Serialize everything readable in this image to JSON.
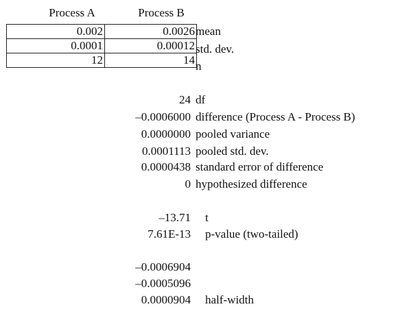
{
  "headers": {
    "process_a": "Process A",
    "process_b": "Process B"
  },
  "input_rows": [
    {
      "a": "0.002",
      "b": "0.0026",
      "label": "mean"
    },
    {
      "a": "0.0001",
      "b": "0.00012",
      "label": "std. dev."
    },
    {
      "a": "12",
      "b": "14",
      "label": "n"
    }
  ],
  "stats": [
    {
      "value": "24",
      "label": "df"
    },
    {
      "value": "–0.0006000",
      "label": "difference (Process A - Process B)"
    },
    {
      "value": "0.0000000",
      "label": "pooled variance"
    },
    {
      "value": "0.0001113",
      "label": "pooled std. dev."
    },
    {
      "value": "0.0000438",
      "label": "standard error of difference"
    },
    {
      "value": "0",
      "label": "hypothesized difference"
    }
  ],
  "test": [
    {
      "value": "–13.71",
      "label": "t"
    },
    {
      "value": "7.61E-13",
      "label": "p-value (two-tailed)"
    }
  ],
  "interval": [
    {
      "value": "–0.0006904",
      "label": ""
    },
    {
      "value": "–0.0005096",
      "label": ""
    },
    {
      "value": "0.0000904",
      "label": "half-width"
    }
  ]
}
